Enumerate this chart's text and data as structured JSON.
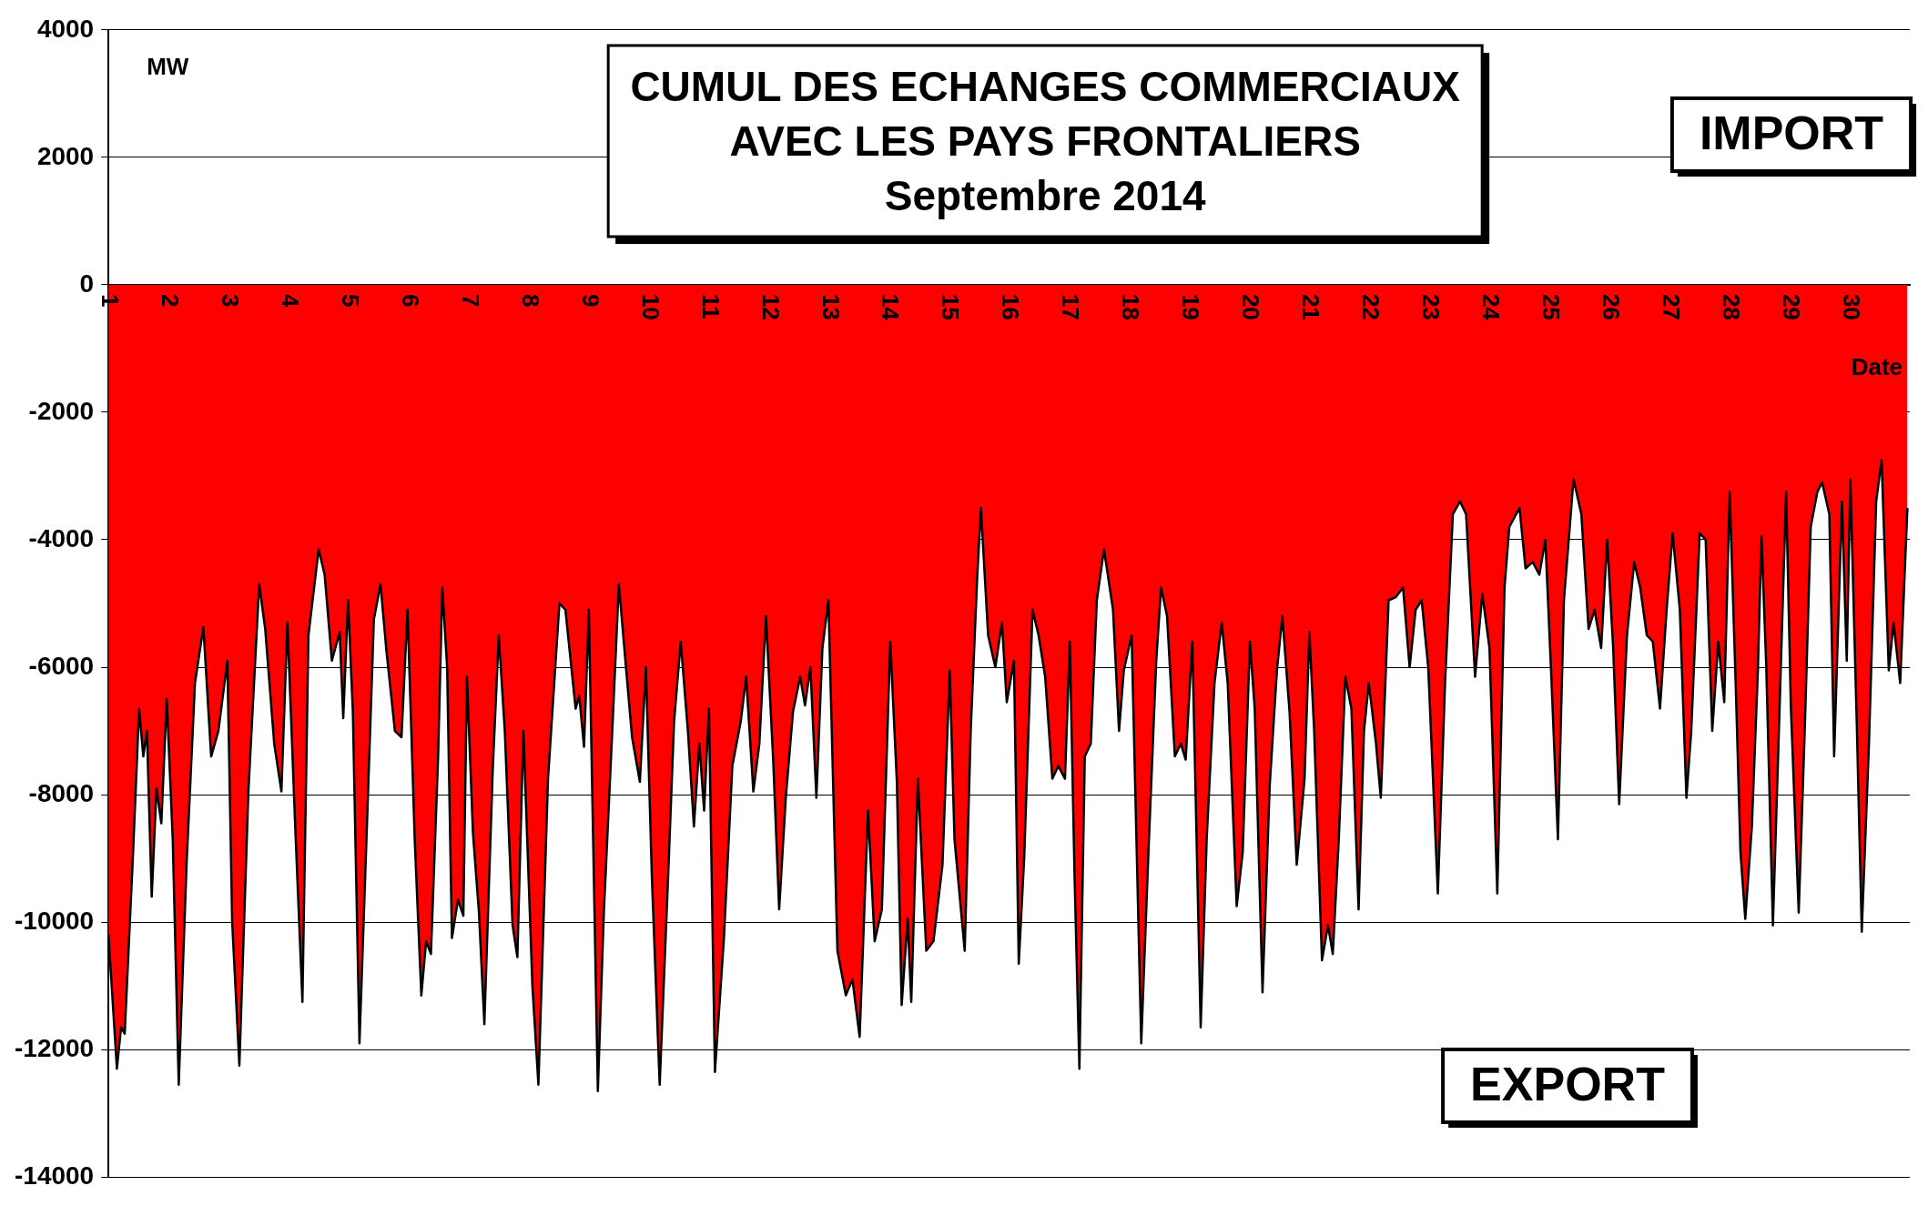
{
  "chart_data": {
    "type": "area",
    "title": "CUMUL DES ECHANGES COMMERCIAUX AVEC LES PAYS FRONTALIERS",
    "subtitle": "Septembre 2014",
    "xlabel": "Date",
    "ylabel": "MW",
    "annotations": [
      "IMPORT",
      "EXPORT"
    ],
    "x": [
      1.0,
      1.14,
      1.21,
      1.27,
      1.41,
      1.51,
      1.58,
      1.64,
      1.72,
      1.8,
      1.88,
      1.97,
      2.07,
      2.17,
      2.3,
      2.44,
      2.58,
      2.71,
      2.83,
      2.98,
      3.06,
      3.18,
      3.33,
      3.51,
      3.61,
      3.76,
      3.88,
      3.98,
      4.11,
      4.23,
      4.33,
      4.5,
      4.6,
      4.72,
      4.85,
      4.91,
      4.99,
      5.07,
      5.18,
      5.32,
      5.42,
      5.53,
      5.63,
      5.77,
      5.88,
      5.98,
      6.1,
      6.21,
      6.29,
      6.37,
      6.49,
      6.56,
      6.64,
      6.72,
      6.82,
      6.91,
      6.97,
      7.07,
      7.17,
      7.26,
      7.4,
      7.5,
      7.6,
      7.73,
      7.81,
      7.91,
      8.06,
      8.16,
      8.32,
      8.51,
      8.61,
      8.78,
      8.84,
      8.92,
      9.0,
      9.15,
      9.25,
      9.4,
      9.5,
      9.6,
      9.72,
      9.85,
      9.95,
      10.05,
      10.18,
      10.32,
      10.42,
      10.53,
      10.65,
      10.75,
      10.84,
      10.92,
      11.0,
      11.1,
      11.25,
      11.39,
      11.53,
      11.62,
      11.74,
      11.84,
      11.95,
      12.07,
      12.17,
      12.28,
      12.4,
      12.52,
      12.6,
      12.69,
      12.79,
      12.89,
      12.99,
      13.14,
      13.28,
      13.39,
      13.51,
      13.65,
      13.76,
      13.88,
      14.02,
      14.13,
      14.21,
      14.31,
      14.37,
      14.48,
      14.62,
      14.74,
      14.89,
      15.01,
      15.09,
      15.26,
      15.36,
      15.47,
      15.53,
      15.65,
      15.77,
      15.88,
      15.96,
      16.08,
      16.16,
      16.25,
      16.39,
      16.49,
      16.6,
      16.72,
      16.82,
      16.93,
      17.01,
      17.09,
      17.17,
      17.26,
      17.36,
      17.46,
      17.58,
      17.73,
      17.83,
      17.91,
      18.04,
      18.2,
      18.32,
      18.45,
      18.53,
      18.63,
      18.76,
      18.86,
      18.94,
      19.05,
      19.19,
      19.29,
      19.42,
      19.54,
      19.64,
      19.79,
      19.89,
      20.01,
      20.09,
      20.22,
      20.34,
      20.46,
      20.55,
      20.67,
      20.79,
      20.92,
      21.0,
      21.08,
      21.21,
      21.31,
      21.39,
      21.49,
      21.6,
      21.7,
      21.82,
      21.91,
      21.99,
      22.11,
      22.19,
      22.32,
      22.44,
      22.56,
      22.67,
      22.77,
      22.87,
      22.98,
      23.14,
      23.26,
      23.39,
      23.51,
      23.61,
      23.76,
      23.88,
      24.0,
      24.13,
      24.25,
      24.33,
      24.5,
      24.6,
      24.72,
      24.83,
      24.93,
      25.03,
      25.14,
      25.24,
      25.4,
      25.53,
      25.65,
      25.75,
      25.86,
      25.96,
      26.06,
      26.16,
      26.29,
      26.41,
      26.51,
      26.62,
      26.72,
      26.84,
      26.95,
      27.05,
      27.17,
      27.28,
      27.36,
      27.5,
      27.6,
      27.71,
      27.81,
      27.91,
      28.0,
      28.1,
      28.18,
      28.26,
      28.37,
      28.47,
      28.53,
      28.61,
      28.72,
      28.82,
      28.94,
      29.02,
      29.15,
      29.25,
      29.35,
      29.46,
      29.54,
      29.66,
      29.74,
      29.87,
      29.95,
      30.01,
      30.12,
      30.2,
      30.32,
      30.44,
      30.53,
      30.65,
      30.73,
      30.84,
      30.96
    ],
    "series": [
      {
        "color": "#ff0000",
        "values": [
          -10200,
          -12300,
          -11650,
          -11750,
          -8900,
          -6650,
          -7400,
          -7000,
          -9600,
          -7900,
          -8450,
          -6500,
          -8700,
          -12550,
          -9100,
          -6250,
          -5370,
          -7400,
          -7000,
          -5900,
          -10000,
          -12250,
          -7950,
          -4700,
          -5400,
          -7200,
          -7950,
          -5300,
          -8500,
          -11250,
          -5500,
          -4150,
          -4550,
          -5900,
          -5450,
          -6800,
          -4950,
          -6700,
          -11900,
          -8050,
          -5250,
          -4700,
          -5750,
          -7000,
          -7100,
          -5100,
          -8700,
          -11150,
          -10300,
          -10500,
          -7400,
          -4750,
          -6000,
          -10250,
          -9650,
          -9900,
          -6150,
          -8600,
          -9850,
          -11600,
          -7600,
          -5500,
          -7000,
          -10050,
          -10550,
          -7000,
          -11000,
          -12550,
          -7750,
          -5000,
          -5100,
          -6650,
          -6450,
          -7250,
          -5100,
          -12650,
          -9850,
          -6800,
          -4700,
          -5800,
          -7100,
          -7800,
          -6000,
          -9300,
          -12550,
          -9300,
          -6850,
          -5600,
          -7000,
          -8500,
          -7200,
          -8250,
          -6650,
          -12350,
          -10250,
          -7550,
          -6850,
          -6150,
          -7950,
          -7200,
          -5200,
          -7450,
          -9800,
          -8050,
          -6700,
          -6150,
          -6600,
          -6000,
          -8050,
          -5700,
          -4950,
          -10450,
          -11150,
          -10900,
          -11800,
          -8250,
          -10300,
          -9800,
          -5600,
          -7800,
          -11300,
          -9950,
          -11250,
          -7750,
          -10450,
          -10300,
          -9100,
          -6050,
          -8700,
          -10450,
          -7000,
          -4550,
          -3500,
          -5500,
          -6000,
          -5300,
          -6550,
          -5900,
          -10650,
          -9000,
          -5100,
          -5500,
          -6150,
          -7750,
          -7550,
          -7750,
          -5600,
          -9300,
          -12300,
          -7400,
          -7200,
          -4950,
          -4150,
          -5100,
          -7000,
          -6050,
          -5500,
          -11900,
          -8900,
          -5900,
          -4750,
          -5200,
          -7400,
          -7200,
          -7450,
          -5600,
          -11650,
          -8700,
          -6250,
          -5300,
          -6250,
          -9750,
          -8900,
          -5600,
          -6650,
          -11100,
          -7850,
          -6050,
          -5200,
          -6700,
          -9100,
          -7750,
          -5450,
          -7000,
          -10600,
          -10050,
          -10500,
          -8700,
          -6150,
          -6650,
          -9800,
          -7000,
          -6250,
          -7200,
          -8050,
          -4950,
          -4900,
          -4750,
          -6000,
          -5100,
          -4950,
          -6000,
          -9550,
          -6250,
          -3600,
          -3400,
          -3600,
          -6150,
          -4850,
          -5700,
          -9550,
          -4750,
          -3800,
          -3500,
          -4450,
          -4350,
          -4550,
          -4000,
          -6150,
          -8700,
          -4950,
          -3050,
          -3600,
          -5400,
          -5100,
          -5700,
          -4000,
          -5700,
          -8150,
          -5500,
          -4350,
          -4750,
          -5500,
          -5600,
          -6650,
          -5100,
          -3900,
          -5100,
          -8050,
          -7000,
          -3900,
          -4000,
          -7000,
          -5600,
          -6550,
          -3250,
          -6250,
          -8900,
          -9950,
          -8500,
          -6050,
          -3950,
          -6000,
          -10050,
          -7000,
          -3250,
          -6650,
          -9850,
          -7000,
          -3800,
          -3250,
          -3100,
          -3600,
          -7400,
          -3400,
          -5900,
          -3050,
          -7000,
          -10150,
          -7200,
          -3400,
          -2750,
          -6050,
          -5300,
          -6250,
          -3500
        ]
      }
    ],
    "xlim": [
      1,
      31
    ],
    "xticks": [
      1,
      2,
      3,
      4,
      5,
      6,
      7,
      8,
      9,
      10,
      11,
      12,
      13,
      14,
      15,
      16,
      17,
      18,
      19,
      20,
      21,
      22,
      23,
      24,
      25,
      26,
      27,
      28,
      29,
      30
    ],
    "ylim": [
      -14000,
      4000
    ],
    "yticks": [
      -14000,
      -12000,
      -10000,
      -8000,
      -6000,
      -4000,
      -2000,
      0,
      2000,
      4000
    ],
    "grid": "y",
    "legend": false
  }
}
